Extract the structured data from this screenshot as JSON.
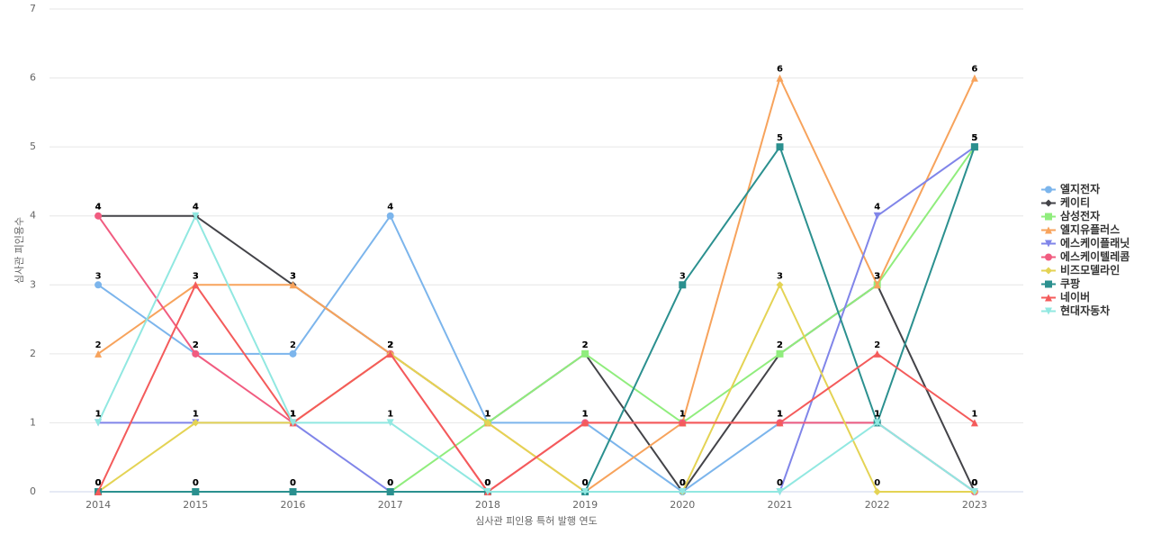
{
  "chart_data": {
    "type": "line",
    "x_label": "심사관 피인용 특허 발행 연도",
    "y_label": "심사관 피인용수",
    "categories": [
      "2014",
      "2015",
      "2016",
      "2017",
      "2018",
      "2019",
      "2020",
      "2021",
      "2022",
      "2023"
    ],
    "ylim": [
      0,
      7
    ],
    "yticks": [
      0,
      1,
      2,
      3,
      4,
      5,
      6,
      7
    ],
    "grid": true,
    "legend": "right",
    "series": [
      {
        "name": "엘지전자",
        "color": "#7cb5ec",
        "marker": "circle",
        "values": [
          3,
          2,
          2,
          4,
          1,
          1,
          0,
          1,
          1,
          0
        ]
      },
      {
        "name": "케이티",
        "color": "#434348",
        "marker": "diamond",
        "values": [
          4,
          4,
          3,
          2,
          1,
          2,
          0,
          2,
          3,
          0
        ]
      },
      {
        "name": "삼성전자",
        "color": "#90ed7d",
        "marker": "square",
        "values": [
          0,
          0,
          0,
          0,
          1,
          2,
          1,
          2,
          3,
          5
        ]
      },
      {
        "name": "엘지유플러스",
        "color": "#f7a35c",
        "marker": "triangle",
        "values": [
          2,
          3,
          3,
          2,
          1,
          0,
          1,
          6,
          3,
          6
        ]
      },
      {
        "name": "에스케이플래닛",
        "color": "#8085e9",
        "marker": "triangle-down",
        "values": [
          1,
          1,
          1,
          0,
          0,
          0,
          0,
          0,
          4,
          5
        ]
      },
      {
        "name": "에스케이텔레콤",
        "color": "#f15c80",
        "marker": "circle",
        "values": [
          4,
          2,
          1,
          2,
          0,
          1,
          1,
          1,
          1,
          0
        ]
      },
      {
        "name": "비즈모델라인",
        "color": "#e4d354",
        "marker": "diamond",
        "values": [
          0,
          1,
          1,
          2,
          1,
          0,
          0,
          3,
          0,
          0
        ]
      },
      {
        "name": "쿠팡",
        "color": "#2b908f",
        "marker": "square",
        "values": [
          0,
          0,
          0,
          0,
          0,
          0,
          3,
          5,
          1,
          5
        ]
      },
      {
        "name": "네이버",
        "color": "#f45b5b",
        "marker": "triangle",
        "values": [
          0,
          3,
          1,
          2,
          0,
          1,
          1,
          1,
          2,
          1
        ]
      },
      {
        "name": "현대자동차",
        "color": "#91e8e1",
        "marker": "triangle-down",
        "values": [
          1,
          4,
          1,
          1,
          0,
          0,
          0,
          0,
          1,
          0
        ]
      }
    ]
  }
}
